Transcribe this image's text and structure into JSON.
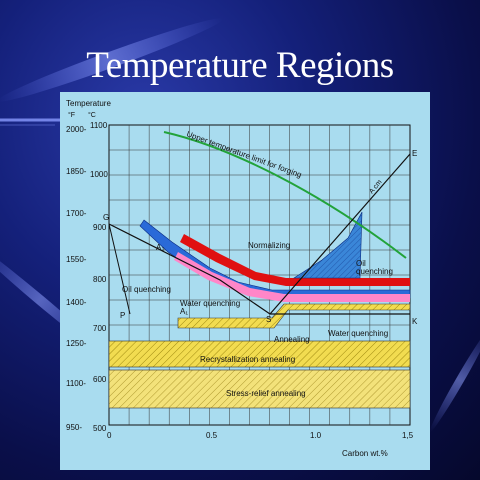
{
  "slide": {
    "title": "Temperature Regions"
  },
  "chart_data": {
    "type": "diagram",
    "axes": {
      "y_title": "Temperature",
      "y_unit_f": "°F",
      "y_unit_c": "°C",
      "x_title": "Carbon wt.%",
      "x_range": [
        0,
        1.5
      ],
      "y_range_c": [
        500,
        1100
      ],
      "x_ticks": [
        "0",
        "0.5",
        "1.0",
        "1,5"
      ],
      "y_ticks_c": [
        "1100",
        "1000",
        "900",
        "800",
        "700",
        "600",
        "500"
      ],
      "y_ticks_f": [
        "2000-",
        "1850-",
        "1700-",
        "1550-",
        "1400-",
        "1250-",
        "1100-",
        "950-"
      ]
    },
    "point_labels": [
      "G",
      "E",
      "P",
      "S",
      "K"
    ],
    "line_labels": [
      "A₃",
      "A₁",
      "A cm"
    ],
    "regions": [
      {
        "name": "Upper temperature limit for forging",
        "color": "#22a33a"
      },
      {
        "name": "Normalizing",
        "color": "#e01010"
      },
      {
        "name": "Oil quenching",
        "color": "#ff86c8"
      },
      {
        "name": "Water quenching",
        "color": "#2a6ad8"
      },
      {
        "name": "Annealing",
        "color": "#f4e03a"
      },
      {
        "name": "Recrystallization annealing",
        "color": "#e9c94a"
      },
      {
        "name": "Stress-relief annealing",
        "color": "#f3e27a"
      }
    ],
    "labels": {
      "forging": "Upper temperature limit for forging",
      "acm": "A cm",
      "a3": "A₃",
      "a1": "A₁",
      "normalizing": "Normalizing",
      "oil_quenching_top": "Oil",
      "oil_quenching_bottom": "quenching",
      "oil_quenching_left": "Oil quenching",
      "water_quenching_left": "Water quenching",
      "water_quenching_right": "Water quenching",
      "annealing": "Annealing",
      "recrystallization": "Recrystallization annealing",
      "stress_relief": "Stress-relief annealing"
    }
  }
}
